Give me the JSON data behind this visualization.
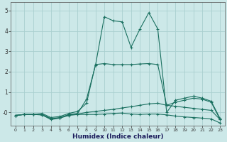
{
  "xlabel": "Humidex (Indice chaleur)",
  "background_color": "#cce8e8",
  "grid_color": "#aacfcf",
  "line_color": "#1a7060",
  "marker": "+",
  "xlim_min": -0.5,
  "xlim_max": 23.5,
  "ylim_min": -0.65,
  "ylim_max": 5.4,
  "yticks": [
    0,
    1,
    2,
    3,
    4,
    5
  ],
  "ytick_labels": [
    "-0",
    "1",
    "2",
    "3",
    "4",
    "5"
  ],
  "xticks": [
    0,
    1,
    2,
    3,
    4,
    5,
    6,
    7,
    8,
    9,
    10,
    11,
    12,
    13,
    14,
    15,
    16,
    17,
    18,
    19,
    20,
    21,
    22,
    23
  ],
  "series": [
    {
      "comment": "main peak line - rises steeply at 10, peaks at 10=4.7, 11=4.5, 12=4.5, dips 13=3.2, 14=4.1, 15=4.9, 16=4.1, drops to 17=0, then small hump",
      "x": [
        0,
        1,
        2,
        3,
        4,
        5,
        6,
        7,
        8,
        9,
        10,
        11,
        12,
        13,
        14,
        15,
        16,
        17,
        18,
        19,
        20,
        21,
        22,
        23
      ],
      "y": [
        -0.15,
        -0.1,
        -0.1,
        -0.1,
        -0.3,
        -0.28,
        -0.1,
        -0.05,
        0.65,
        2.3,
        4.7,
        4.5,
        4.45,
        3.2,
        4.1,
        4.9,
        4.1,
        0.0,
        0.6,
        0.7,
        0.8,
        0.7,
        0.55,
        -0.3
      ]
    },
    {
      "x": [
        0,
        1,
        2,
        3,
        4,
        5,
        6,
        7,
        8,
        9,
        10,
        11,
        12,
        13,
        14,
        15,
        16,
        17,
        18,
        19,
        20,
        21,
        22,
        23
      ],
      "y": [
        -0.15,
        -0.1,
        -0.1,
        -0.05,
        -0.25,
        -0.2,
        -0.05,
        0.05,
        0.45,
        2.35,
        2.4,
        2.35,
        2.35,
        2.35,
        2.38,
        2.4,
        2.35,
        0.35,
        0.5,
        0.6,
        0.7,
        0.65,
        0.5,
        -0.35
      ]
    },
    {
      "x": [
        0,
        1,
        2,
        3,
        4,
        5,
        6,
        7,
        8,
        9,
        10,
        11,
        12,
        13,
        14,
        15,
        16,
        17,
        18,
        19,
        20,
        21,
        22,
        23
      ],
      "y": [
        -0.15,
        -0.1,
        -0.1,
        -0.12,
        -0.3,
        -0.25,
        -0.12,
        -0.08,
        0.0,
        0.05,
        0.1,
        0.15,
        0.22,
        0.28,
        0.35,
        0.42,
        0.45,
        0.35,
        0.3,
        0.25,
        0.2,
        0.15,
        0.1,
        -0.35
      ]
    },
    {
      "x": [
        0,
        1,
        2,
        3,
        4,
        5,
        6,
        7,
        8,
        9,
        10,
        11,
        12,
        13,
        14,
        15,
        16,
        17,
        18,
        19,
        20,
        21,
        22,
        23
      ],
      "y": [
        -0.15,
        -0.1,
        -0.1,
        -0.12,
        -0.35,
        -0.28,
        -0.15,
        -0.1,
        -0.1,
        -0.1,
        -0.08,
        -0.05,
        -0.03,
        -0.08,
        -0.1,
        -0.08,
        -0.08,
        -0.12,
        -0.18,
        -0.22,
        -0.25,
        -0.28,
        -0.32,
        -0.52
      ]
    }
  ]
}
